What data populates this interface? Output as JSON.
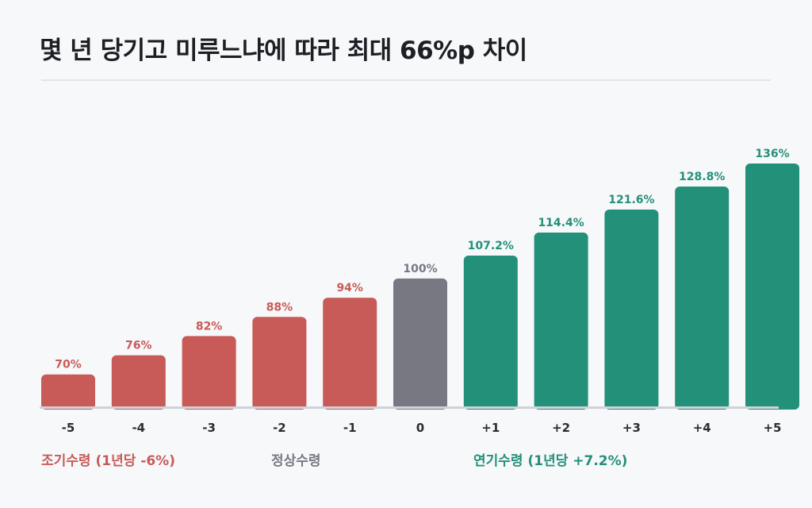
{
  "title": "몇 년 당기고 미루느냐에 따라 최대 66%p 차이",
  "colors": {
    "early": "#c85a58",
    "normal": "#777882",
    "late": "#23907a",
    "early_text": "#c85a58",
    "normal_text": "#777882",
    "late_text": "#23907a",
    "baseline": "#cfd2d9"
  },
  "groups": {
    "early": "조기수령 (1년당 -6%)",
    "normal": "정상수령",
    "late": "연기수령 (1년당 +7.2%)"
  },
  "chart_data": {
    "type": "bar",
    "title": "몇 년 당기고 미루느냐에 따라 최대 66%p 차이",
    "categories": [
      "-5",
      "-4",
      "-3",
      "-2",
      "-1",
      "0",
      "+1",
      "+2",
      "+3",
      "+4",
      "+5"
    ],
    "values": [
      70,
      76,
      82,
      88,
      94,
      100,
      107.2,
      114.4,
      121.6,
      128.8,
      136
    ],
    "labels": [
      "70%",
      "76%",
      "82%",
      "88%",
      "94%",
      "100%",
      "107.2%",
      "114.4%",
      "121.6%",
      "128.8%",
      "136%"
    ],
    "bar_group": [
      "early",
      "early",
      "early",
      "early",
      "early",
      "normal",
      "late",
      "late",
      "late",
      "late",
      "late"
    ],
    "ylim": [
      60,
      136
    ],
    "xlabel": "",
    "ylabel": "",
    "grid": false,
    "legend": "none"
  }
}
